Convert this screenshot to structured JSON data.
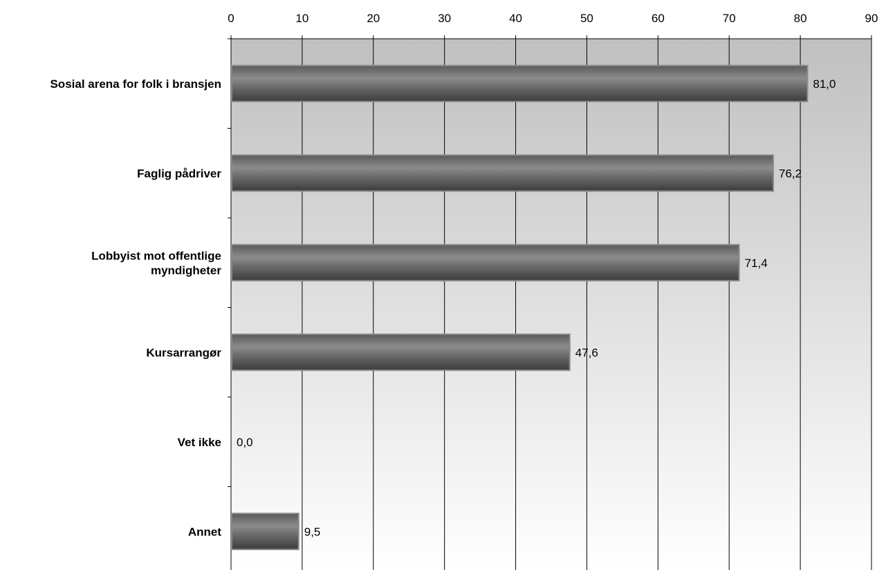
{
  "chart_data": {
    "type": "bar",
    "orientation": "horizontal",
    "categories": [
      "Sosial arena for folk i bransjen",
      "Faglig pådriver",
      "Lobbyist mot offentlige myndigheter",
      "Kursarrangør",
      "Vet ikke",
      "Annet"
    ],
    "category_lines": [
      [
        "Sosial arena for folk i bransjen"
      ],
      [
        "Faglig pådriver"
      ],
      [
        "Lobbyist mot offentlige",
        "myndigheter"
      ],
      [
        "Kursarrangør"
      ],
      [
        "Vet ikke"
      ],
      [
        "Annet"
      ]
    ],
    "values": [
      81.0,
      76.2,
      71.4,
      47.6,
      0.0,
      9.5
    ],
    "data_labels": [
      "81,0",
      "76,2",
      "71,4",
      "47,6",
      "0,0",
      "9,5"
    ],
    "xlim": [
      0,
      90
    ],
    "x_ticks": [
      "0",
      "10",
      "20",
      "30",
      "40",
      "50",
      "60",
      "70",
      "80",
      "90"
    ],
    "axis_position": "top",
    "grid": true,
    "legend": "none",
    "colors": {
      "bar": "#6e6e6e",
      "bar_light": "#9a9a9a",
      "bar_dark": "#3c3c3c",
      "plot_bg_top": "#c0c0c0",
      "plot_bg_bottom": "#ffffff",
      "grid": "#000000"
    }
  }
}
